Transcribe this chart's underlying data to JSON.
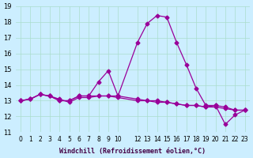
{
  "xlabel": "Windchill (Refroidissement éolien,°C)",
  "ylabel": "",
  "background_color": "#cceeff",
  "grid_color": "#aaddcc",
  "line_color": "#990099",
  "ylim": [
    11,
    19
  ],
  "yticks": [
    11,
    12,
    13,
    14,
    15,
    16,
    17,
    18,
    19
  ],
  "xticks": [
    0,
    1,
    2,
    3,
    4,
    5,
    6,
    7,
    8,
    9,
    10,
    12,
    13,
    14,
    15,
    16,
    17,
    18,
    19,
    20,
    21,
    22,
    23
  ],
  "curve1_x": [
    0,
    1,
    2,
    3,
    4,
    5,
    6,
    7,
    8,
    9,
    10,
    12,
    13,
    14,
    15,
    16,
    17,
    18,
    19,
    20,
    21,
    22,
    23
  ],
  "curve1_y": [
    13.0,
    13.1,
    13.4,
    13.3,
    13.0,
    13.0,
    13.3,
    13.3,
    14.2,
    14.9,
    13.3,
    16.7,
    17.9,
    18.4,
    18.3,
    16.7,
    15.3,
    13.8,
    12.7,
    12.7,
    11.5,
    12.1,
    12.4
  ],
  "curve2_x": [
    0,
    1,
    2,
    3,
    4,
    5,
    6,
    7,
    8,
    9,
    10,
    12,
    13,
    14,
    15,
    16,
    17,
    18,
    19,
    20,
    21,
    22,
    23
  ],
  "curve2_y": [
    13.0,
    13.1,
    13.4,
    13.3,
    13.0,
    13.0,
    13.3,
    13.3,
    13.3,
    13.3,
    13.3,
    13.1,
    13.0,
    13.0,
    12.9,
    12.8,
    12.7,
    12.7,
    12.6,
    12.6,
    12.5,
    12.4,
    12.4
  ],
  "curve3_x": [
    0,
    1,
    2,
    3,
    4,
    5,
    6,
    7,
    8,
    9,
    10,
    12,
    13,
    14,
    15,
    16,
    17,
    18,
    19,
    20,
    21,
    22,
    23
  ],
  "curve3_y": [
    13.0,
    13.1,
    13.4,
    13.3,
    13.1,
    12.9,
    13.2,
    13.2,
    13.3,
    13.3,
    13.2,
    13.0,
    13.0,
    12.9,
    12.9,
    12.8,
    12.7,
    12.7,
    12.6,
    12.7,
    12.6,
    12.4,
    12.4
  ]
}
